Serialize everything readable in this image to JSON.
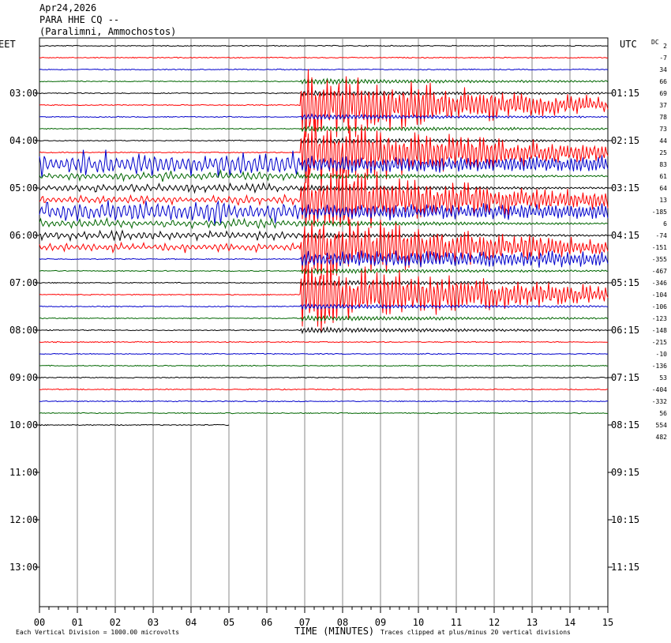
{
  "header": {
    "date": "Apr24,2026",
    "station": "PARA HHE CQ --",
    "location": "(Paralimni, Ammochostos)"
  },
  "colors": {
    "black": "#000000",
    "red": "#ff0000",
    "blue": "#0000cc",
    "green": "#006600",
    "grid": "#888888"
  },
  "chart_data": {
    "type": "line",
    "title": "",
    "left_axis_title": "EET",
    "right_axis_title": "UTC",
    "dc_title": "DC",
    "xlabel": "TIME (MINUTES)",
    "xlim": [
      0,
      15
    ],
    "x_ticks": [
      "00",
      "01",
      "02",
      "03",
      "04",
      "05",
      "06",
      "07",
      "08",
      "09",
      "10",
      "11",
      "12",
      "13",
      "14",
      "15"
    ],
    "left_ticks": [
      "03:00",
      "04:00",
      "05:00",
      "06:00",
      "07:00",
      "08:00",
      "09:00",
      "10:00",
      "11:00",
      "12:00",
      "13:00"
    ],
    "right_ticks": [
      "01:15",
      "02:15",
      "03:15",
      "04:15",
      "05:15",
      "06:15",
      "07:15",
      "08:15",
      "09:15",
      "10:15",
      "11:15"
    ],
    "trace_color_cycle": [
      "black",
      "red",
      "blue",
      "green"
    ],
    "dc_offsets": [
      "2",
      "-7",
      "34",
      "66",
      "69",
      "37",
      "78",
      "73",
      "44",
      "25",
      "83",
      "61",
      "64",
      "13",
      "-185",
      "6",
      "-74",
      "-151",
      "-355",
      "-467",
      "-346",
      "-104",
      "-106",
      "-123",
      "-148",
      "-215",
      "-10",
      "-136",
      "53",
      "-404",
      "-332",
      "56",
      "554",
      "482"
    ],
    "traces_shown": 33,
    "last_trace_end_minute": 5.0,
    "event": {
      "start_minute": 6.9,
      "end_minute": 15.0,
      "peak_minute": 7.2,
      "description": "",
      "high_amplitude_trace_ranges": [
        [
          3,
          24
        ],
        [
          10,
          20
        ]
      ]
    },
    "footer_left": "Each Vertical Division = 1000.00 microvolts",
    "footer_right": "Traces clipped at plus/minus 20 vertical divisions"
  }
}
